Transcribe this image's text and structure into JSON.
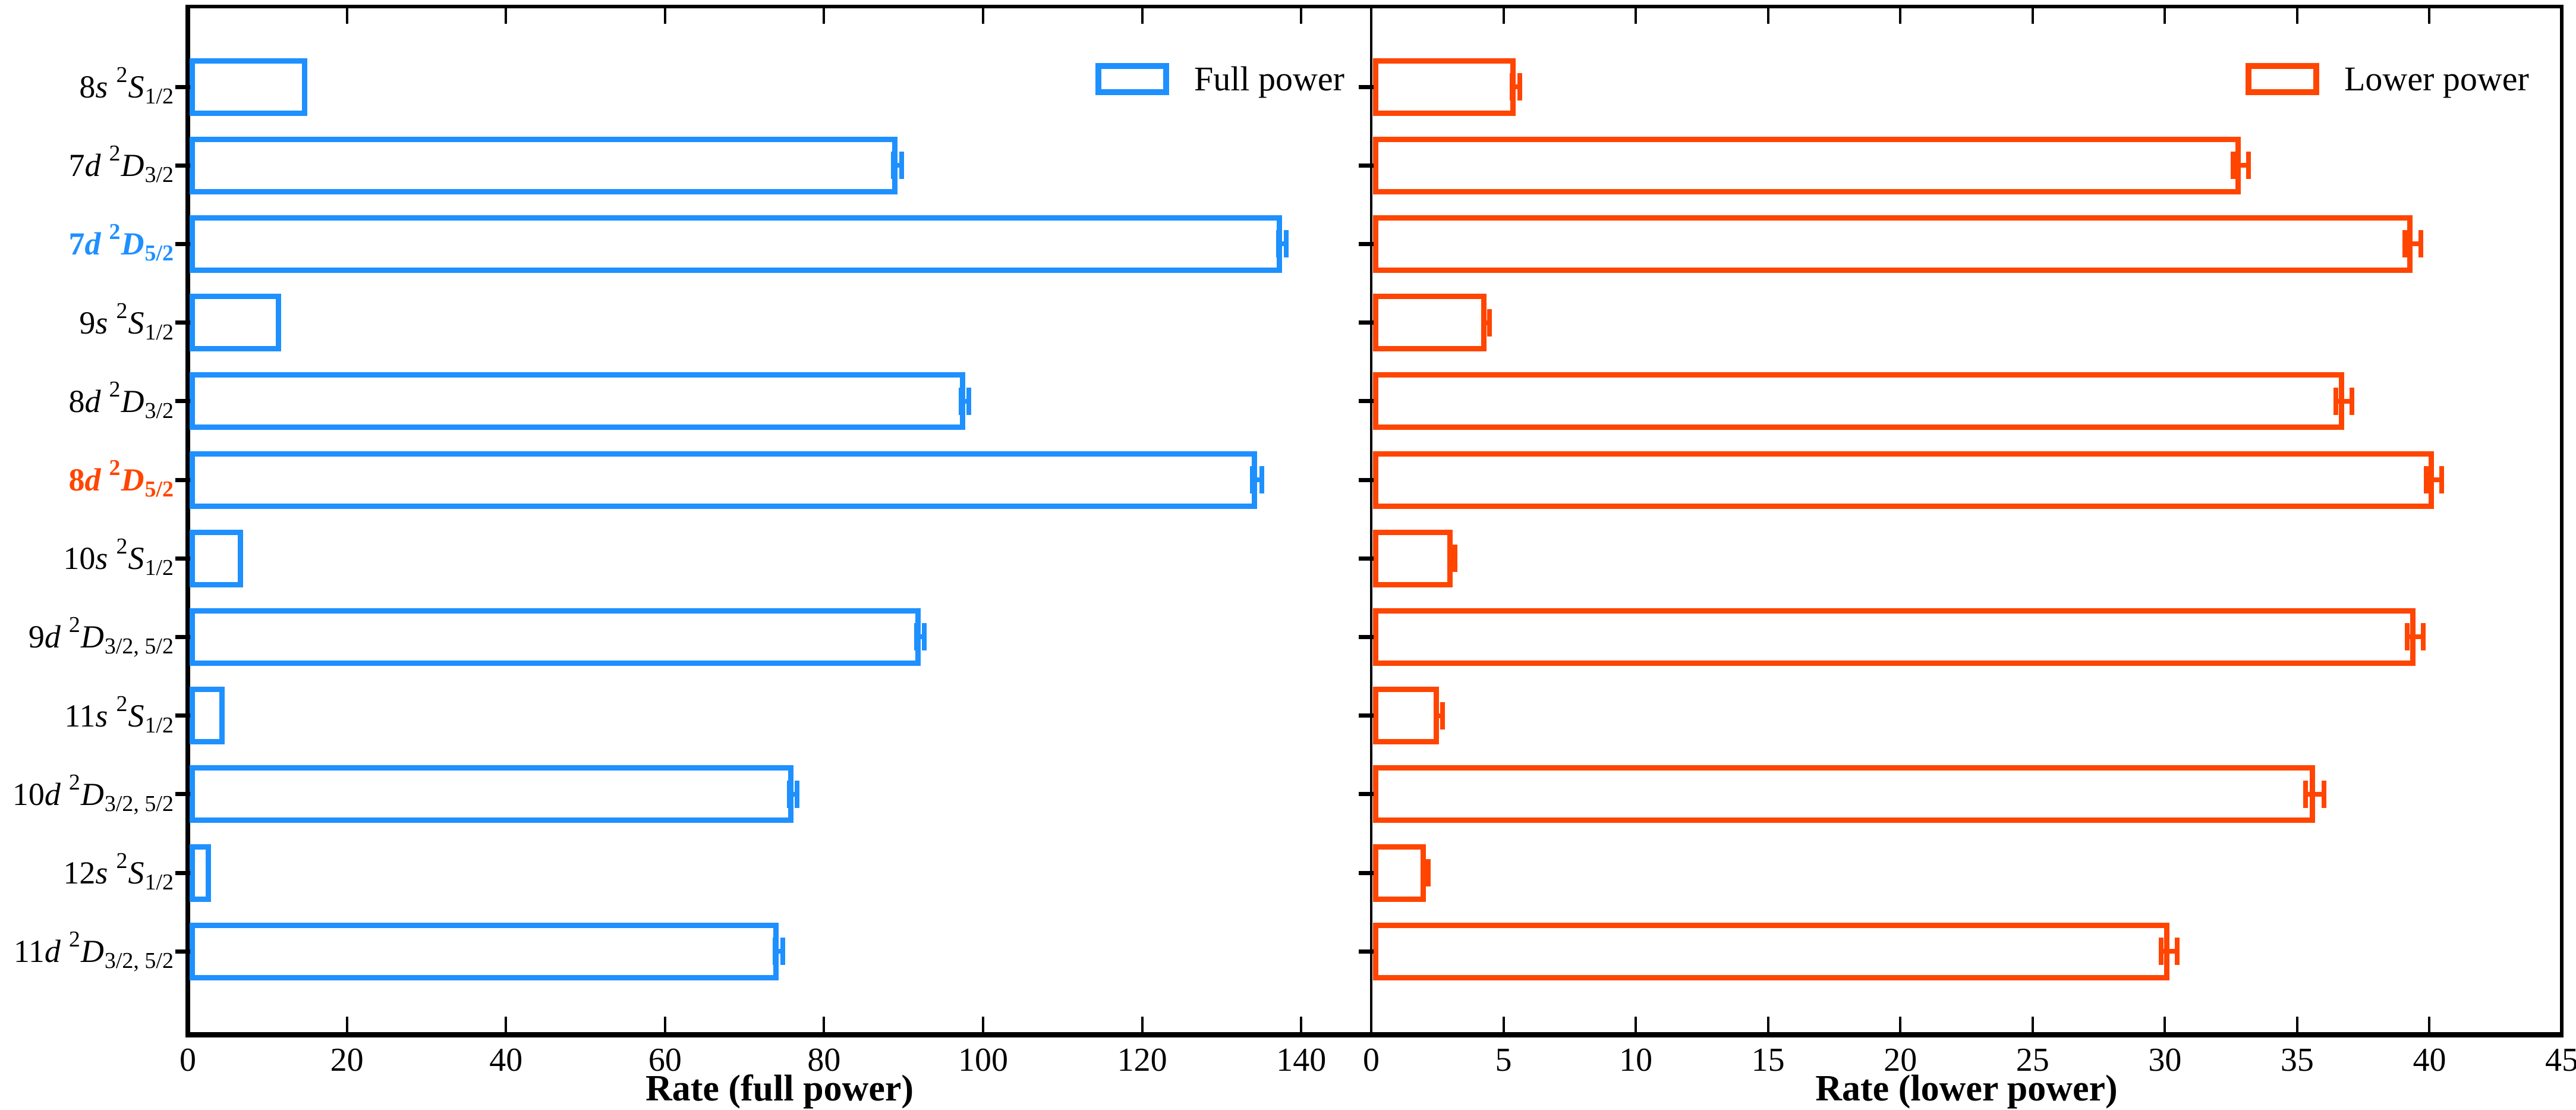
{
  "chart_data": {
    "type": "bar",
    "orientation": "horizontal",
    "grid": false,
    "categories": [
      {
        "label": "8s 2S1/2",
        "n": "8",
        "orb": "s",
        "sup": "2",
        "term": "S",
        "sub": "1/2",
        "highlight": null
      },
      {
        "label": "7d 2D3/2",
        "n": "7",
        "orb": "d",
        "sup": "2",
        "term": "D",
        "sub": "3/2",
        "highlight": null
      },
      {
        "label": "7d 2D5/2",
        "n": "7",
        "orb": "d",
        "sup": "2",
        "term": "D",
        "sub": "5/2",
        "highlight": "#1E90FF"
      },
      {
        "label": "9s 2S1/2",
        "n": "9",
        "orb": "s",
        "sup": "2",
        "term": "S",
        "sub": "1/2",
        "highlight": null
      },
      {
        "label": "8d 2D3/2",
        "n": "8",
        "orb": "d",
        "sup": "2",
        "term": "D",
        "sub": "3/2",
        "highlight": null
      },
      {
        "label": "8d 2D5/2",
        "n": "8",
        "orb": "d",
        "sup": "2",
        "term": "D",
        "sub": "5/2",
        "highlight": "#FF4500"
      },
      {
        "label": "10s 2S1/2",
        "n": "10",
        "orb": "s",
        "sup": "2",
        "term": "S",
        "sub": "1/2",
        "highlight": null
      },
      {
        "label": "9d 2D3/2,5/2",
        "n": "9",
        "orb": "d",
        "sup": "2",
        "term": "D",
        "sub": "3/2, 5/2",
        "highlight": null
      },
      {
        "label": "11s 2S1/2",
        "n": "11",
        "orb": "s",
        "sup": "2",
        "term": "S",
        "sub": "1/2",
        "highlight": null
      },
      {
        "label": "10d 2D3/2,5/2",
        "n": "10",
        "orb": "d",
        "sup": "2",
        "term": "D",
        "sub": "3/2, 5/2",
        "highlight": null
      },
      {
        "label": "12s 2S1/2",
        "n": "12",
        "orb": "s",
        "sup": "2",
        "term": "S",
        "sub": "1/2",
        "highlight": null
      },
      {
        "label": "11d 2D3/2,5/2",
        "n": "11",
        "orb": "d",
        "sup": "2",
        "term": "D",
        "sub": "3/2, 5/2",
        "highlight": null
      }
    ],
    "series": [
      {
        "name": "Full power",
        "color": "#1E90FF",
        "xlabel": "Rate (full power)",
        "xticks": [
          0,
          20,
          40,
          60,
          80,
          100,
          120,
          140
        ],
        "xlim": [
          0,
          148.8
        ],
        "values": [
          14.8,
          89.0,
          137.4,
          11.5,
          97.5,
          134.2,
          6.7,
          91.9,
          4.4,
          75.9,
          2.7,
          74.1
        ],
        "errors": [
          0,
          0.5,
          0.5,
          0,
          0.5,
          0.6,
          0,
          0.5,
          0,
          0.5,
          0,
          0.5
        ]
      },
      {
        "name": "Lower power",
        "color": "#FF4500",
        "xlabel": "Rate (lower power)",
        "xticks": [
          0,
          5,
          10,
          15,
          20,
          25,
          30,
          35,
          40,
          45
        ],
        "xlim": [
          0,
          45
        ],
        "values": [
          5.4,
          32.8,
          39.3,
          4.3,
          36.7,
          40.1,
          3.0,
          39.4,
          2.5,
          35.6,
          2.0,
          30.1
        ],
        "errors": [
          0.15,
          0.3,
          0.3,
          0.1,
          0.3,
          0.3,
          0.1,
          0.3,
          0.12,
          0.35,
          0.1,
          0.3
        ]
      }
    ],
    "legend_position": "upper-right-of-each-panel"
  }
}
